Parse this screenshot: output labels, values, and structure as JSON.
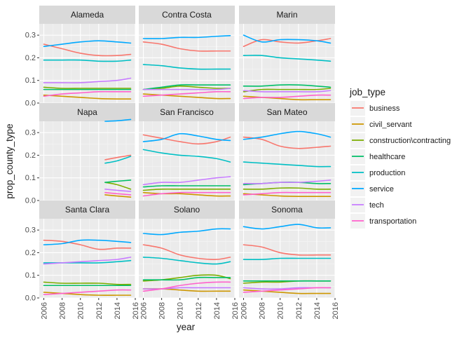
{
  "chart_data": {
    "type": "line",
    "xlabel": "year",
    "ylabel": "prop_county_type",
    "xlim": [
      2005.5,
      2016
    ],
    "ylim": [
      0,
      0.35
    ],
    "x_ticks": [
      2006,
      2008,
      2010,
      2012,
      2014,
      2016
    ],
    "y_ticks": [
      0.0,
      0.1,
      0.2,
      0.3
    ],
    "y_tick_labels": [
      "0.0",
      "0.1",
      "0.2",
      "0.3"
    ],
    "legend": {
      "title": "job_type",
      "position": "right"
    },
    "series_names": [
      "business",
      "civil_servant",
      "construction\\contracting",
      "healthcare",
      "production",
      "service",
      "tech",
      "transportation"
    ],
    "colors": {
      "business": "#F8766D",
      "civil_servant": "#CD9600",
      "construction\\contracting": "#7CAE00",
      "healthcare": "#00BE67",
      "production": "#00BFC4",
      "service": "#00A9FF",
      "tech": "#C77CFF",
      "transportation": "#FF61CC"
    },
    "panels": [
      {
        "title": "Alameda",
        "x": [
          2006,
          2008,
          2010,
          2012,
          2014,
          2015.5
        ],
        "series": {
          "business": [
            0.26,
            0.24,
            0.22,
            0.21,
            0.21,
            0.215
          ],
          "civil_servant": [
            0.035,
            0.03,
            0.025,
            0.02,
            0.018,
            0.018
          ],
          "construction\\contracting": [
            0.07,
            0.065,
            0.065,
            0.065,
            0.065,
            0.065
          ],
          "healthcare": [
            0.06,
            0.06,
            0.06,
            0.06,
            0.06,
            0.06
          ],
          "production": [
            0.19,
            0.19,
            0.19,
            0.185,
            0.185,
            0.19
          ],
          "service": [
            0.25,
            0.26,
            0.27,
            0.275,
            0.27,
            0.265
          ],
          "tech": [
            0.09,
            0.09,
            0.09,
            0.095,
            0.1,
            0.11
          ],
          "transportation": [
            0.03,
            0.04,
            0.045,
            0.05,
            0.05,
            0.05
          ]
        }
      },
      {
        "title": "Contra Costa",
        "x": [
          2006,
          2008,
          2010,
          2012,
          2014,
          2015.5
        ],
        "series": {
          "business": [
            0.27,
            0.26,
            0.24,
            0.23,
            0.23,
            0.23
          ],
          "civil_servant": [
            0.04,
            0.035,
            0.03,
            0.025,
            0.02,
            0.02
          ],
          "construction\\contracting": [
            0.06,
            0.065,
            0.075,
            0.07,
            0.065,
            0.065
          ],
          "healthcare": [
            0.06,
            0.07,
            0.08,
            0.08,
            0.08,
            0.08
          ],
          "production": [
            0.17,
            0.165,
            0.155,
            0.15,
            0.15,
            0.15
          ],
          "service": [
            0.285,
            0.285,
            0.29,
            0.29,
            0.295,
            0.298
          ],
          "tech": [
            0.06,
            0.06,
            0.06,
            0.06,
            0.06,
            0.065
          ],
          "transportation": [
            0.03,
            0.035,
            0.04,
            0.045,
            0.05,
            0.05
          ]
        }
      },
      {
        "title": "Marin",
        "x": [
          2006,
          2008,
          2010,
          2012,
          2014,
          2015.5
        ],
        "series": {
          "business": [
            0.25,
            0.28,
            0.27,
            0.265,
            0.275,
            0.285
          ],
          "civil_servant": [
            0.03,
            0.025,
            0.02,
            0.015,
            0.015,
            0.015
          ],
          "construction\\contracting": [
            0.05,
            0.06,
            0.06,
            0.06,
            0.06,
            0.065
          ],
          "healthcare": [
            0.075,
            0.075,
            0.08,
            0.08,
            0.075,
            0.07
          ],
          "production": [
            0.21,
            0.21,
            0.2,
            0.195,
            0.19,
            0.185
          ],
          "service": [
            0.3,
            0.27,
            0.28,
            0.28,
            0.275,
            0.265
          ],
          "tech": [
            0.055,
            0.05,
            0.05,
            0.05,
            0.05,
            0.055
          ],
          "transportation": [
            0.02,
            0.025,
            0.025,
            0.03,
            0.035,
            0.035
          ]
        }
      },
      {
        "title": "Napa",
        "x": [
          2012.7,
          2014,
          2015.5
        ],
        "series": {
          "business": [
            0.18,
            0.19,
            0.2
          ],
          "civil_servant": [
            0.025,
            0.02,
            0.015
          ],
          "construction\\contracting": [
            0.08,
            0.07,
            0.05
          ],
          "healthcare": [
            0.08,
            0.085,
            0.09
          ],
          "production": [
            0.165,
            0.175,
            0.195
          ],
          "service": [
            0.35,
            0.352,
            0.358
          ],
          "tech": [
            0.05,
            0.045,
            0.04
          ],
          "transportation": [
            0.035,
            0.03,
            0.025
          ]
        }
      },
      {
        "title": "San Francisco",
        "x": [
          2006,
          2008,
          2010,
          2012,
          2014,
          2015.5
        ],
        "series": {
          "business": [
            0.29,
            0.275,
            0.26,
            0.25,
            0.26,
            0.28
          ],
          "civil_servant": [
            0.035,
            0.03,
            0.03,
            0.025,
            0.02,
            0.02
          ],
          "construction\\contracting": [
            0.045,
            0.05,
            0.05,
            0.05,
            0.05,
            0.05
          ],
          "healthcare": [
            0.06,
            0.065,
            0.065,
            0.065,
            0.065,
            0.065
          ],
          "production": [
            0.225,
            0.21,
            0.2,
            0.195,
            0.185,
            0.17
          ],
          "service": [
            0.26,
            0.27,
            0.295,
            0.285,
            0.27,
            0.265
          ],
          "tech": [
            0.07,
            0.08,
            0.08,
            0.09,
            0.1,
            0.105
          ],
          "transportation": [
            0.02,
            0.03,
            0.035,
            0.035,
            0.035,
            0.035
          ]
        }
      },
      {
        "title": "San Mateo",
        "x": [
          2006,
          2008,
          2010,
          2012,
          2014,
          2015.5
        ],
        "series": {
          "business": [
            0.28,
            0.27,
            0.24,
            0.23,
            0.235,
            0.24
          ],
          "civil_servant": [
            0.03,
            0.025,
            0.02,
            0.018,
            0.018,
            0.018
          ],
          "construction\\contracting": [
            0.05,
            0.05,
            0.055,
            0.055,
            0.05,
            0.05
          ],
          "healthcare": [
            0.07,
            0.075,
            0.08,
            0.08,
            0.075,
            0.075
          ],
          "production": [
            0.17,
            0.165,
            0.16,
            0.155,
            0.15,
            0.15
          ],
          "service": [
            0.27,
            0.28,
            0.295,
            0.305,
            0.295,
            0.28
          ],
          "tech": [
            0.075,
            0.075,
            0.08,
            0.08,
            0.085,
            0.09
          ],
          "transportation": [
            0.025,
            0.03,
            0.035,
            0.035,
            0.035,
            0.035
          ]
        }
      },
      {
        "title": "Santa Clara",
        "x": [
          2006,
          2008,
          2010,
          2012,
          2014,
          2015.5
        ],
        "series": {
          "business": [
            0.255,
            0.25,
            0.235,
            0.215,
            0.22,
            0.22
          ],
          "civil_servant": [
            0.025,
            0.02,
            0.015,
            0.012,
            0.012,
            0.012
          ],
          "construction\\contracting": [
            0.07,
            0.065,
            0.065,
            0.065,
            0.06,
            0.06
          ],
          "healthcare": [
            0.055,
            0.055,
            0.055,
            0.055,
            0.055,
            0.055
          ],
          "production": [
            0.155,
            0.155,
            0.155,
            0.155,
            0.16,
            0.165
          ],
          "service": [
            0.235,
            0.24,
            0.255,
            0.255,
            0.25,
            0.245
          ],
          "tech": [
            0.15,
            0.155,
            0.16,
            0.165,
            0.17,
            0.18
          ],
          "transportation": [
            0.015,
            0.02,
            0.025,
            0.03,
            0.035,
            0.035
          ]
        }
      },
      {
        "title": "Solano",
        "x": [
          2006,
          2008,
          2010,
          2012,
          2014,
          2015.5
        ],
        "series": {
          "business": [
            0.235,
            0.22,
            0.19,
            0.175,
            0.17,
            0.18
          ],
          "civil_servant": [
            0.04,
            0.04,
            0.035,
            0.03,
            0.03,
            0.03
          ],
          "construction\\contracting": [
            0.075,
            0.08,
            0.09,
            0.1,
            0.1,
            0.085
          ],
          "healthcare": [
            0.08,
            0.08,
            0.08,
            0.09,
            0.09,
            0.09
          ],
          "production": [
            0.18,
            0.175,
            0.165,
            0.155,
            0.15,
            0.16
          ],
          "service": [
            0.285,
            0.28,
            0.29,
            0.295,
            0.305,
            0.305
          ],
          "tech": [
            0.04,
            0.04,
            0.045,
            0.045,
            0.045,
            0.045
          ],
          "transportation": [
            0.03,
            0.04,
            0.055,
            0.065,
            0.07,
            0.07
          ]
        }
      },
      {
        "title": "Sonoma",
        "x": [
          2006,
          2008,
          2010,
          2012,
          2014,
          2015.5
        ],
        "series": {
          "business": [
            0.235,
            0.225,
            0.2,
            0.19,
            0.19,
            0.19
          ],
          "civil_servant": [
            0.035,
            0.03,
            0.025,
            0.02,
            0.02,
            0.02
          ],
          "construction\\contracting": [
            0.065,
            0.07,
            0.07,
            0.075,
            0.075,
            0.075
          ],
          "healthcare": [
            0.075,
            0.075,
            0.075,
            0.075,
            0.075,
            0.075
          ],
          "production": [
            0.17,
            0.17,
            0.175,
            0.175,
            0.175,
            0.175
          ],
          "service": [
            0.315,
            0.305,
            0.315,
            0.325,
            0.31,
            0.31
          ],
          "tech": [
            0.045,
            0.04,
            0.04,
            0.045,
            0.045,
            0.045
          ],
          "transportation": [
            0.025,
            0.03,
            0.035,
            0.04,
            0.045,
            0.045
          ]
        }
      }
    ]
  }
}
